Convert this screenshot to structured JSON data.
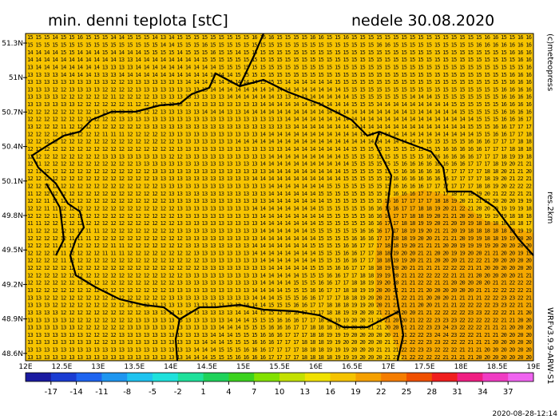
{
  "header": {
    "title": "min. denni teplota [stC]",
    "date": "nedele 30.08.2020"
  },
  "side_labels": [
    "(c)meteopress",
    "res.2km",
    "WRFv3.9.9-ARW-S1"
  ],
  "footer": "2020-08-28-12:14",
  "map": {
    "lat_labels": [
      "51.3N",
      "51N",
      "50.7N",
      "50.4N",
      "50.1N",
      "49.8N",
      "49.5N",
      "49.2N",
      "48.9N",
      "48.6N"
    ],
    "lon_labels": [
      "12E",
      "12.5E",
      "13E",
      "13.5E",
      "14E",
      "14.5E",
      "15E",
      "15.5E",
      "16E",
      "16.5E",
      "17E",
      "17.5E",
      "18E",
      "18.5E",
      "19E"
    ],
    "grid": [
      "15 15 15 14 15 15 16 15 15 15 14 14 15 15 15 14 13 14 15 15 15 15 15 15 15 15 15 16 16 16 15 15 15 15 16 16 15 15 16 15 15 15 15 15 15 15 15 15 15 15 15 15 15 15 15 16 16 15 15 16 16",
      "15 15 15 15 15 15 15 15 15 15 15 15 15 15 15 15 14 14 15 15 15 16 15 15 15 15 15 15 15 15 15 15 15 15 15 15 15 15 15 15 15 15 16 16 15 15 15 15 15 15 15 15 15 15 16 16 16 16 16 16 16",
      "14 14 14 14 15 15 14 14 14 15 14 14 14 14 15 15 15 15 14 15 15 15 16 15 15 14 15 15 15 15 15 15 15 15 15 15 15 15 15 15 15 15 15 15 15 15 15 15 15 15 15 15 15 15 15 15 15 15 16 16 16",
      "14 14 14 14 14 14 14 14 14 14 14 13 13 14 14 14 14 14 14 14 14 15 15 15 15 15 15 15 15 15 15 15 15 15 15 15 15 15 15 15 15 15 15 15 15 15 15 15 15 15 15 15 15 15 15 15 15 15 15 16 16",
      "13 14 14 14 14 14 14 14 14 13 13 13 13 14 14 14 14 14 14 14 14 14 14 15 15 15 15 15 15 15 15 15 15 15 15 15 15 15 15 15 15 15 15 15 15 15 15 15 15 15 15 15 15 15 15 15 15 15 15 15 16",
      "13 13 13 13 14 14 14 14 13 13 13 14 14 14 14 14 14 14 14 14 14 14 14 14 14 15 15 15 15 15 15 15 15 15 15 15 15 15 15 15 15 15 15 15 15 15 15 15 15 15 15 15 15 15 15 15 15 15 16 16 16",
      "13 13 13 13 13 13 13 13 13 13 12 12 13 13 13 13 13 13 13 14 14 14 14 14 14 14 14 14 15 15 15 14 14 14 14 14 14 15 15 15 15 15 15 15 15 15 15 15 15 15 15 15 15 15 15 15 15 15 16 16 16",
      "13 13 13 12 12 13 13 13 13 12 12 12 12 13 13 13 13 13 13 13 13 13 14 14 14 14 14 14 14 14 14 14 14 14 14 14 14 14 15 15 15 15 15 15 15 15 15 15 15 15 15 15 15 15 15 15 15 16 16 16 16",
      "13 13 13 13 12 12 12 12 12 12 11 12 12 12 12 13 13 13 13 13 13 13 13 13 14 14 14 14 14 14 13 13 13 13 14 14 14 14 14 15 15 15 15 15 15 15 14 14 14 15 15 15 15 15 15 15 15 16 16 16 16",
      "13 13 13 13 13 13 12 12 12 12 12 12 11 12 12 12 13 13 13 13 13 13 13 13 13 13 13 13 14 14 14 14 14 14 14 14 14 14 14 15 15 15 14 14 14 14 14 14 14 14 14 15 15 15 15 15 15 16 16 16 16",
      "12 12 12 12 12 12 12 12 13 13 13 13 13 13 12 12 13 13 13 13 13 14 14 14 13 13 14 14 14 14 14 14 14 14 14 14 14 14 14 14 14 14 14 14 14 14 13 14 14 14 14 14 15 15 15 15 15 16 16 16 16",
      "12 12 12 12 12 12 12 12 12 12 12 13 13 13 13 13 13 13 13 13 13 13 13 13 13 13 13 13 13 13 13 14 14 14 14 14 14 14 14 14 14 14 14 14 14 14 14 14 14 14 14 14 14 14 15 15 15 16 16 16 17",
      "13 12 12 12 11 12 12 12 12 12 12 12 12 12 13 13 13 13 13 13 13 13 13 13 13 13 13 13 13 13 13 13 14 14 14 14 14 14 14 14 14 14 14 14 14 14 14 14 14 14 14 14 14 15 15 15 16 16 17 17 17",
      "12 12 12 12 12 12 12 12 12 11 11 11 12 12 12 12 12 13 13 13 13 13 13 13 13 13 13 13 14 14 14 14 14 14 14 14 14 14 14 14 14 14 14 14 14 14 14 14 14 14 14 14 14 14 15 15 16 16 17 17 18",
      "12 12 12 12 12 12 12 12 12 12 12 12 12 12 12 12 12 12 13 13 13 13 13 13 13 14 14 14 14 14 14 14 14 14 14 14 14 14 14 14 14 14 14 14 14 14 14 14 15 15 15 15 15 16 16 16 17 17 17 18 18",
      "12 12 12 12 12 12 12 12 12 12 12 12 12 12 12 12 12 12 13 13 13 13 13 13 13 13 13 13 13 13 13 14 14 14 14 14 14 14 14 15 15 15 15 15 15 15 15 15 15 15 16 16 16 16 16 17 17 17 18 18 18",
      "12 12 12 12 12 12 12 12 12 13 13 13 13 13 13 13 13 12 12 13 13 13 13 13 13 13 13 13 13 14 14 14 14 14 14 14 14 14 15 15 15 15 15 15 15 15 15 15 16 16 16 16 16 16 17 17 17 18 19 19 18",
      "12 11 12 12 12 12 12 12 12 12 12 12 12 13 13 13 13 13 13 13 13 13 13 13 13 13 13 13 14 14 14 14 14 14 14 14 14 14 14 15 15 15 15 15 15 16 16 16 16 16 16 16 16 17 17 17 18 19 20 21 21",
      "12 11 12 12 12 12 12 12 12 12 12 12 12 12 12 13 13 13 13 13 13 13 13 13 13 13 13 13 13 14 14 14 14 14 14 14 14 14 15 15 15 15 15 15 15 16 16 16 16 16 17 17 17 17 17 18 18 20 21 21 20",
      "12 12 12 12 12 12 12 12 12 12 12 12 12 12 12 13 13 13 13 13 13 13 13 13 13 13 13 14 14 14 14 14 14 14 14 14 14 14 15 15 15 15 15 15 16 16 16 16 16 16 16 17 17 17 17 18 19 20 21 22 21",
      "12 12 12 12 12 12 12 12 12 12 12 12 12 12 12 12 13 13 13 13 13 13 13 13 13 13 13 13 13 14 14 14 14 14 14 14 15 15 15 15 15 15 15 15 16 16 16 16 17 17 17 17 17 17 18 18 19 20 22 22 22",
      "11 12 12 12 12 12 12 12 12 12 12 12 12 12 12 12 12 13 13 13 13 13 13 13 13 13 13 13 13 14 14 14 14 14 14 15 15 15 15 15 15 15 15 16 16 16 16 17 17 17 17 18 17 18 19 20 21 22 22 21 21",
      "12 12 11 11 12 12 12 12 12 12 12 12 12 12 12 12 12 13 13 13 13 13 13 13 13 13 13 13 13 14 14 14 14 14 14 14 15 15 15 15 15 15 15 16 16 17 17 17 17 18 18 19 20 21 21 22 20 20 20 19 19",
      "12 12 11 11 12 12 12 12 12 12 12 12 12 12 12 12 12 12 13 13 13 13 13 13 13 13 13 14 14 14 14 14 14 14 14 15 15 15 15 15 15 16 16 16 16 17 17 18 18 19 20 21 22 21 20 20 20 19 19 19 18",
      "12 12 12 11 12 12 12 12 12 12 12 12 12 12 12 12 12 12 13 13 13 13 13 13 13 13 13 13 14 14 14 14 14 14 14 14 15 15 15 15 15 16 16 16 17 17 18 18 19 20 21 21 20 20 19 19 19 19 18 18 18",
      "11 11 12 12 12 12 12 12 12 12 12 12 12 12 12 12 12 12 13 13 13 13 13 13 13 13 13 13 14 14 14 14 14 14 14 15 15 15 15 15 15 16 16 17 17 18 18 19 19 20 21 20 19 19 18 18 18 18 18 18 17",
      "11 12 12 12 12 12 12 11 11 12 12 12 12 12 12 12 12 12 13 13 13 13 13 13 13 13 13 13 14 14 14 14 14 14 15 15 15 15 15 15 16 16 16 17 17 18 19 19 20 21 21 20 19 18 18 18 18 18 18 19 19",
      "12 12 12 12 12 11 11 11 12 12 12 12 12 12 12 12 12 12 12 13 13 13 13 13 13 13 13 13 14 14 14 14 14 14 14 15 15 15 15 16 16 16 17 17 18 18 19 20 20 21 21 21 20 19 19 18 18 19 19 20 20",
      "12 12 12 11 11 11 12 12 12 12 11 11 12 12 12 12 12 12 12 13 13 13 13 13 13 13 13 14 14 14 14 14 14 14 15 15 15 15 16 16 17 17 17 18 18 19 20 21 21 21 20 20 19 19 19 19 20 20 20 20 20",
      "12 12 12 11 11 12 12 12 12 11 11 11 12 12 12 12 12 12 12 12 13 13 13 13 13 13 13 14 14 14 14 14 14 14 14 15 15 15 16 16 17 17 18 18 19 20 20 21 21 20 20 19 19 20 20 21 21 20 20 19 19",
      "12 12 12 12 11 12 12 12 12 12 12 12 12 12 12 12 12 12 12 12 12 13 13 13 13 13 13 13 14 14 14 14 14 14 14 15 15 15 16 16 17 17 18 18 19 19 20 21 21 20 20 20 21 22 22 21 20 20 20 20 20",
      "12 12 12 12 12 12 12 12 12 12 12 12 12 12 12 12 12 12 12 12 12 13 13 13 13 13 13 13 13 14 14 14 14 14 15 15 15 16 16 17 17 18 18 19 20 20 21 21 21 21 22 22 22 21 21 20 20 20 20 20 20",
      "12 12 12 12 12 12 12 12 12 12 12 12 12 12 12 12 12 12 12 13 13 13 13 13 13 13 13 13 14 14 14 14 14 15 15 15 16 16 17 17 18 18 19 19 20 21 21 22 22 22 22 21 21 21 20 20 20 20 20 21 21",
      "12 12 12 12 12 12 12 12 12 12 12 12 12 12 12 12 12 12 13 13 13 13 13 13 13 13 13 13 14 14 14 14 15 15 15 16 16 17 17 18 18 19 19 20 20 21 21 22 22 21 21 20 20 20 20 20 21 21 22 22 22",
      "13 12 12 12 12 12 12 12 12 12 12 12 12 12 12 12 12 13 13 13 13 13 13 13 13 13 13 14 14 14 14 15 15 15 16 16 17 17 18 18 19 19 20 20 21 21 21 21 20 20 20 20 20 20 21 21 22 22 22 22 21",
      "13 13 12 12 12 12 12 12 12 12 12 12 12 12 12 12 12 13 13 13 13 13 13 13 13 13 13 14 14 14 15 15 15 16 16 17 17 17 18 18 19 20 20 21 21 22 21 21 20 20 20 21 21 21 21 22 22 23 23 22 21",
      "13 13 13 12 12 12 12 12 12 12 12 12 12 12 12 13 13 13 13 13 13 13 13 13 13 13 14 14 14 15 15 15 16 16 17 17 18 18 18 19 19 20 20 21 21 21 21 20 20 21 21 21 22 22 22 22 23 23 22 21 21",
      "13 13 13 13 12 12 12 12 12 12 12 12 12 12 13 13 13 13 13 13 13 13 13 13 13 14 14 14 15 15 15 16 16 17 17 17 18 18 19 19 20 20 21 21 21 20 20 21 21 22 22 22 22 23 23 22 22 22 21 21 20",
      "13 13 13 13 13 12 12 12 12 12 12 12 12 13 13 13 13 13 13 13 13 13 13 13 14 14 14 15 15 15 16 16 16 17 17 18 18 19 19 20 20 21 21 21 20 20 21 22 22 23 23 23 22 22 22 22 22 21 21 20 20",
      "13 13 13 13 13 13 12 12 12 12 12 12 13 13 13 13 13 13 13 13 13 13 13 14 14 14 15 15 15 16 16 16 17 17 18 18 18 19 19 20 20 21 21 20 20 21 21 22 23 23 24 23 22 22 22 21 21 21 20 20 20",
      "13 13 13 13 13 13 13 12 12 12 12 13 13 13 13 13 13 13 13 13 13 13 14 14 14 15 15 15 16 16 16 17 17 17 18 18 19 19 19 20 20 20 20 20 21 21 22 22 23 24 24 23 22 22 21 21 21 20 20 20 20",
      "13 13 13 13 13 13 13 13 12 12 13 13 13 13 13 13 13 13 13 13 13 14 14 14 15 15 15 16 16 16 17 17 17 18 18 18 19 19 20 20 20 20 20 21 21 22 22 22 23 23 22 22 22 21 21 21 20 20 20 20 20",
      "13 13 13 13 13 13 13 13 13 13 13 13 13 13 13 13 13 13 13 13 14 14 14 15 15 15 16 16 16 17 17 17 17 18 18 18 19 19 19 20 20 20 21 21 21 22 22 23 23 22 22 22 21 21 21 20 20 20 20 20 20",
      "13 13 13 13 13 13 13 13 13 13 13 13 13 13 13 13 13 13 13 14 14 14 15 15 15 16 16 16 16 17 17 17 17 18 18 18 18 19 19 19 20 20 20 21 21 21 22 22 22 22 21 21 21 21 20 20 20 20 20 20 20"
    ]
  },
  "colorbar": {
    "labels": [
      "-17",
      "-14",
      "-11",
      "-8",
      "-5",
      "-2",
      "1",
      "4",
      "7",
      "10",
      "13",
      "16",
      "19",
      "22",
      "25",
      "28",
      "31",
      "34",
      "37"
    ],
    "colors": [
      "#1a1aa0",
      "#1a3cd2",
      "#1e64f0",
      "#1e96f0",
      "#1ec3f0",
      "#1ee1dc",
      "#1ee19b",
      "#1ed25a",
      "#3cd21e",
      "#82e100",
      "#c3e100",
      "#f0e100",
      "#f5c300",
      "#f5a000",
      "#f57d00",
      "#f05000",
      "#f01e1e",
      "#f01e82",
      "#f03cc3",
      "#f064f0"
    ]
  }
}
